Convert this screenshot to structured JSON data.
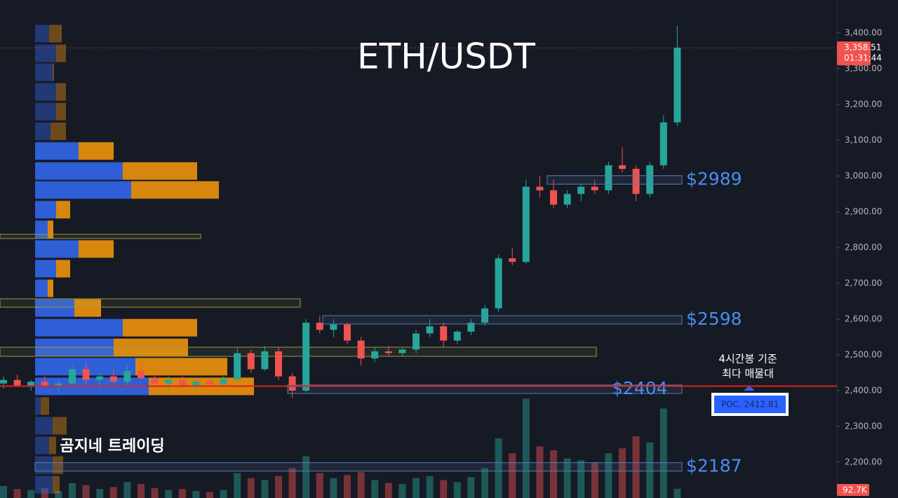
{
  "chart_data": {
    "type": "candlestick",
    "title": "ETH/USDT",
    "watermark": "곰지네 트레이딩",
    "open": [
      2420,
      2430,
      2415,
      2425,
      2412,
      2420,
      2460,
      2430,
      2440,
      2425,
      2455,
      2435,
      2420,
      2430,
      2415,
      2425,
      2418,
      2432,
      2505,
      2460,
      2510,
      2440,
      2400,
      2590,
      2570,
      2585,
      2540,
      2490,
      2510,
      2505,
      2515,
      2560,
      2580,
      2540,
      2565,
      2590,
      2630,
      2770,
      2760,
      2970,
      2960,
      2920,
      2950,
      2970,
      2960,
      3030,
      3020,
      2950,
      3030,
      3150
    ],
    "high": [
      2440,
      2445,
      2430,
      2440,
      2430,
      2470,
      2480,
      2450,
      2460,
      2470,
      2475,
      2445,
      2440,
      2440,
      2430,
      2435,
      2440,
      2520,
      2515,
      2525,
      2520,
      2450,
      2600,
      2610,
      2600,
      2590,
      2550,
      2520,
      2525,
      2520,
      2570,
      2600,
      2590,
      2570,
      2600,
      2640,
      2780,
      2800,
      2990,
      3000,
      2990,
      2960,
      2980,
      2990,
      3040,
      3080,
      3030,
      3040,
      3170,
      3420
    ],
    "low": [
      2405,
      2410,
      2400,
      2410,
      2395,
      2415,
      2420,
      2410,
      2420,
      2415,
      2430,
      2405,
      2400,
      2410,
      2405,
      2410,
      2410,
      2425,
      2450,
      2455,
      2430,
      2380,
      2395,
      2560,
      2550,
      2530,
      2470,
      2480,
      2495,
      2495,
      2505,
      2550,
      2520,
      2530,
      2555,
      2580,
      2620,
      2750,
      2755,
      2940,
      2910,
      2910,
      2930,
      2950,
      2950,
      3010,
      2930,
      2940,
      3020,
      3140
    ],
    "close": [
      2430,
      2415,
      2425,
      2412,
      2420,
      2460,
      2430,
      2440,
      2425,
      2455,
      2435,
      2420,
      2430,
      2415,
      2425,
      2418,
      2432,
      2505,
      2460,
      2510,
      2440,
      2400,
      2590,
      2570,
      2585,
      2540,
      2490,
      2510,
      2505,
      2515,
      2560,
      2580,
      2540,
      2565,
      2590,
      2630,
      2770,
      2760,
      2970,
      2960,
      2920,
      2950,
      2970,
      2960,
      3030,
      3020,
      2950,
      3030,
      3150,
      3358.51
    ],
    "volume": [
      120,
      90,
      80,
      100,
      70,
      150,
      130,
      90,
      110,
      160,
      140,
      100,
      80,
      90,
      70,
      60,
      80,
      250,
      200,
      180,
      220,
      300,
      420,
      250,
      200,
      230,
      260,
      180,
      150,
      140,
      200,
      220,
      180,
      160,
      210,
      300,
      600,
      450,
      1000,
      520,
      480,
      400,
      380,
      360,
      450,
      500,
      620,
      560,
      900,
      92.7
    ],
    "volume_ylim": [
      0,
      1200
    ],
    "last_price": {
      "value": 3358.51,
      "label": "3,358.51"
    },
    "countdown": "01:31:44",
    "last_volume_label": "92.7K",
    "ylim": [
      2100,
      3492
    ],
    "yticks": [
      {
        "value": 3400,
        "label": "3,400.00"
      },
      {
        "value": 3300,
        "label": "3,300.00"
      },
      {
        "value": 3200,
        "label": "3,200.00"
      },
      {
        "value": 3100,
        "label": "3,100.00"
      },
      {
        "value": 3000,
        "label": "3,000.00"
      },
      {
        "value": 2900,
        "label": "2,900.00"
      },
      {
        "value": 2800,
        "label": "2,800.00"
      },
      {
        "value": 2700,
        "label": "2,700.00"
      },
      {
        "value": 2600,
        "label": "2,600.00"
      },
      {
        "value": 2500,
        "label": "2,500.00"
      },
      {
        "value": 2400,
        "label": "2,400.00"
      },
      {
        "value": 2300,
        "label": "2,300.00"
      },
      {
        "value": 2200,
        "label": "2,200.00"
      }
    ],
    "levels": [
      {
        "label": "$2989",
        "value": 2989
      },
      {
        "label": "$2598",
        "value": 2598
      },
      {
        "label": "$2404",
        "value": 2404
      },
      {
        "label": "$2187",
        "value": 2187
      }
    ],
    "poc": {
      "value": 2412.81,
      "label": "POC. 2412.81"
    },
    "annotation": [
      "4시간봉 기준",
      "최다 매물대"
    ],
    "up_color": "#26a69a",
    "down_color": "#ef5350",
    "volume_profile": {
      "price": [
        3398,
        3343,
        3290,
        3235,
        3180,
        3125,
        3070,
        3014,
        2961,
        2906,
        2851,
        2796,
        2741,
        2686,
        2631,
        2576,
        2521,
        2467,
        2412,
        2357,
        2302,
        2247,
        2192,
        2137
      ],
      "buy": [
        20,
        30,
        25,
        30,
        30,
        22,
        62,
        125,
        137,
        30,
        18,
        62,
        30,
        18,
        56,
        125,
        112,
        143,
        162,
        8,
        25,
        20,
        25,
        25
      ],
      "sell": [
        18,
        14,
        2,
        14,
        14,
        22,
        50,
        106,
        125,
        20,
        8,
        50,
        20,
        8,
        38,
        106,
        106,
        131,
        150,
        12,
        20,
        10,
        15,
        10
      ],
      "buy_color": "#2f5fd6",
      "sell_color": "#d9860f"
    }
  }
}
